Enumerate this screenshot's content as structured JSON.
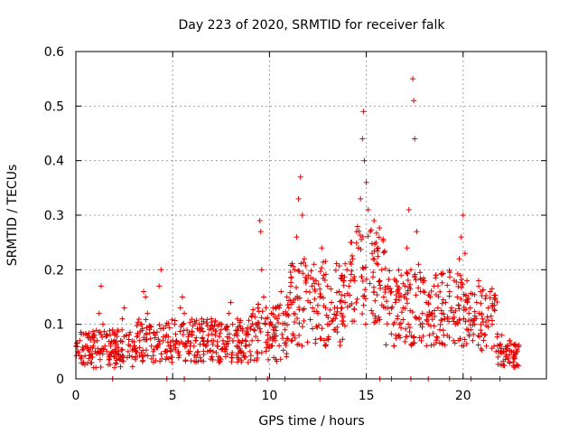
{
  "chart_data": {
    "type": "scatter",
    "title": "Day 223 of 2020, SRMTID for receiver falk",
    "xlabel": "GPS time / hours",
    "ylabel": "SRMTID / TECUs",
    "xlim": [
      0,
      24.3
    ],
    "ylim": [
      0,
      0.6
    ],
    "x_ticks": [
      0,
      5,
      10,
      15,
      20
    ],
    "x_tick_labels": [
      "0",
      "5",
      "10",
      "15",
      "20"
    ],
    "y_ticks": [
      0,
      0.1,
      0.2,
      0.3,
      0.4,
      0.5,
      0.6
    ],
    "y_tick_labels": [
      "0",
      "0.1",
      "0.2",
      "0.3",
      "0.4",
      "0.5",
      "0.6"
    ],
    "grid": true,
    "marker": "plus",
    "color": "#e00000",
    "series": [
      {
        "name": "SRMTID",
        "points": [
          [
            0.0,
            0.06
          ],
          [
            0.1,
            0.05
          ],
          [
            0.2,
            0.07
          ],
          [
            0.3,
            0.04
          ],
          [
            0.4,
            0.03
          ],
          [
            0.5,
            0.06
          ],
          [
            0.6,
            0.08
          ],
          [
            0.7,
            0.05
          ],
          [
            0.8,
            0.04
          ],
          [
            0.9,
            0.06
          ],
          [
            1.0,
            0.05
          ],
          [
            1.1,
            0.07
          ],
          [
            1.2,
            0.12
          ],
          [
            1.3,
            0.17
          ],
          [
            1.4,
            0.1
          ],
          [
            1.5,
            0.06
          ],
          [
            1.6,
            0.05
          ],
          [
            1.7,
            0.04
          ],
          [
            1.8,
            0.06
          ],
          [
            1.9,
            0.05
          ],
          [
            2.0,
            0.07
          ],
          [
            2.1,
            0.06
          ],
          [
            2.2,
            0.05
          ],
          [
            2.3,
            0.04
          ],
          [
            2.4,
            0.11
          ],
          [
            2.5,
            0.13
          ],
          [
            2.6,
            0.08
          ],
          [
            2.7,
            0.05
          ],
          [
            2.8,
            0.06
          ],
          [
            2.9,
            0.04
          ],
          [
            3.0,
            0.06
          ],
          [
            3.1,
            0.05
          ],
          [
            3.2,
            0.08
          ],
          [
            3.3,
            0.07
          ],
          [
            3.4,
            0.1
          ],
          [
            3.5,
            0.16
          ],
          [
            3.6,
            0.15
          ],
          [
            3.7,
            0.12
          ],
          [
            3.8,
            0.09
          ],
          [
            3.9,
            0.06
          ],
          [
            4.0,
            0.05
          ],
          [
            4.1,
            0.08
          ],
          [
            4.2,
            0.06
          ],
          [
            4.3,
            0.17
          ],
          [
            4.4,
            0.2
          ],
          [
            4.5,
            0.07
          ],
          [
            4.6,
            0.05
          ],
          [
            4.7,
            0.04
          ],
          [
            4.8,
            0.06
          ],
          [
            4.9,
            0.05
          ],
          [
            5.0,
            0.07
          ],
          [
            5.1,
            0.1
          ],
          [
            5.2,
            0.07
          ],
          [
            5.3,
            0.05
          ],
          [
            5.4,
            0.13
          ],
          [
            5.5,
            0.15
          ],
          [
            5.6,
            0.12
          ],
          [
            5.7,
            0.06
          ],
          [
            5.8,
            0.05
          ],
          [
            5.9,
            0.06
          ],
          [
            6.0,
            0.08
          ],
          [
            6.1,
            0.06
          ],
          [
            6.2,
            0.07
          ],
          [
            6.3,
            0.05
          ],
          [
            6.4,
            0.09
          ],
          [
            6.5,
            0.11
          ],
          [
            6.6,
            0.07
          ],
          [
            6.7,
            0.06
          ],
          [
            6.8,
            0.05
          ],
          [
            6.9,
            0.09
          ],
          [
            7.0,
            0.11
          ],
          [
            7.1,
            0.07
          ],
          [
            7.2,
            0.08
          ],
          [
            7.3,
            0.06
          ],
          [
            7.4,
            0.1
          ],
          [
            7.5,
            0.09
          ],
          [
            7.6,
            0.07
          ],
          [
            7.7,
            0.05
          ],
          [
            7.8,
            0.09
          ],
          [
            7.9,
            0.12
          ],
          [
            8.0,
            0.14
          ],
          [
            8.1,
            0.1
          ],
          [
            8.2,
            0.08
          ],
          [
            8.3,
            0.06
          ],
          [
            8.4,
            0.07
          ],
          [
            8.5,
            0.05
          ],
          [
            8.6,
            0.07
          ],
          [
            8.7,
            0.04
          ],
          [
            8.8,
            0.06
          ],
          [
            8.9,
            0.03
          ],
          [
            9.0,
            0.05
          ],
          [
            9.1,
            0.07
          ],
          [
            9.2,
            0.09
          ],
          [
            9.3,
            0.1
          ],
          [
            9.4,
            0.13
          ],
          [
            9.5,
            0.29
          ],
          [
            9.55,
            0.27
          ],
          [
            9.6,
            0.2
          ],
          [
            9.7,
            0.15
          ],
          [
            9.8,
            0.11
          ],
          [
            9.9,
            0.08
          ],
          [
            10.0,
            0.1
          ],
          [
            10.1,
            0.12
          ],
          [
            10.2,
            0.09
          ],
          [
            10.3,
            0.07
          ],
          [
            10.4,
            0.11
          ],
          [
            10.5,
            0.13
          ],
          [
            10.6,
            0.16
          ],
          [
            10.7,
            0.12
          ],
          [
            10.8,
            0.09
          ],
          [
            10.9,
            0.15
          ],
          [
            11.0,
            0.13
          ],
          [
            11.1,
            0.17
          ],
          [
            11.2,
            0.14
          ],
          [
            11.3,
            0.2
          ],
          [
            11.4,
            0.26
          ],
          [
            11.5,
            0.33
          ],
          [
            11.6,
            0.37
          ],
          [
            11.7,
            0.3
          ],
          [
            11.8,
            0.22
          ],
          [
            11.9,
            0.16
          ],
          [
            12.0,
            0.19
          ],
          [
            12.1,
            0.14
          ],
          [
            12.2,
            0.17
          ],
          [
            12.3,
            0.21
          ],
          [
            12.4,
            0.18
          ],
          [
            12.5,
            0.12
          ],
          [
            12.6,
            0.15
          ],
          [
            12.7,
            0.24
          ],
          [
            12.8,
            0.19
          ],
          [
            12.9,
            0.13
          ],
          [
            13.0,
            0.17
          ],
          [
            13.1,
            0.1
          ],
          [
            13.2,
            0.14
          ],
          [
            13.3,
            0.11
          ],
          [
            13.4,
            0.09
          ],
          [
            13.5,
            0.13
          ],
          [
            13.6,
            0.16
          ],
          [
            13.7,
            0.12
          ],
          [
            13.8,
            0.18
          ],
          [
            13.9,
            0.14
          ],
          [
            14.0,
            0.2
          ],
          [
            14.1,
            0.17
          ],
          [
            14.2,
            0.25
          ],
          [
            14.3,
            0.22
          ],
          [
            14.4,
            0.18
          ],
          [
            14.5,
            0.27
          ],
          [
            14.6,
            0.24
          ],
          [
            14.7,
            0.33
          ],
          [
            14.8,
            0.44
          ],
          [
            14.85,
            0.49
          ],
          [
            14.9,
            0.4
          ],
          [
            15.0,
            0.36
          ],
          [
            15.1,
            0.31
          ],
          [
            15.2,
            0.27
          ],
          [
            15.3,
            0.23
          ],
          [
            15.4,
            0.29
          ],
          [
            15.5,
            0.25
          ],
          [
            15.6,
            0.21
          ],
          [
            15.7,
            0.18
          ],
          [
            15.8,
            0.2
          ],
          [
            15.9,
            0.15
          ],
          [
            16.0,
            0.13
          ],
          [
            16.1,
            0.17
          ],
          [
            16.2,
            0.12
          ],
          [
            16.3,
            0.16
          ],
          [
            16.4,
            0.1
          ],
          [
            16.5,
            0.14
          ],
          [
            16.6,
            0.11
          ],
          [
            16.7,
            0.15
          ],
          [
            16.8,
            0.19
          ],
          [
            16.9,
            0.13
          ],
          [
            17.0,
            0.17
          ],
          [
            17.1,
            0.24
          ],
          [
            17.2,
            0.31
          ],
          [
            17.3,
            0.2
          ],
          [
            17.4,
            0.55
          ],
          [
            17.45,
            0.51
          ],
          [
            17.5,
            0.44
          ],
          [
            17.6,
            0.27
          ],
          [
            17.7,
            0.21
          ],
          [
            17.8,
            0.16
          ],
          [
            17.9,
            0.12
          ],
          [
            18.0,
            0.18
          ],
          [
            18.1,
            0.14
          ],
          [
            18.2,
            0.1
          ],
          [
            18.3,
            0.15
          ],
          [
            18.4,
            0.12
          ],
          [
            18.5,
            0.17
          ],
          [
            18.6,
            0.19
          ],
          [
            18.7,
            0.13
          ],
          [
            18.8,
            0.09
          ],
          [
            18.9,
            0.12
          ],
          [
            19.0,
            0.08
          ],
          [
            19.1,
            0.14
          ],
          [
            19.2,
            0.11
          ],
          [
            19.3,
            0.16
          ],
          [
            19.4,
            0.13
          ],
          [
            19.5,
            0.07
          ],
          [
            19.6,
            0.1
          ],
          [
            19.7,
            0.15
          ],
          [
            19.8,
            0.22
          ],
          [
            19.9,
            0.26
          ],
          [
            20.0,
            0.3
          ],
          [
            20.1,
            0.23
          ],
          [
            20.2,
            0.18
          ],
          [
            20.3,
            0.12
          ],
          [
            20.4,
            0.09
          ],
          [
            20.5,
            0.07
          ],
          [
            20.6,
            0.1
          ],
          [
            20.7,
            0.14
          ],
          [
            20.8,
            0.18
          ],
          [
            20.9,
            0.16
          ],
          [
            21.0,
            0.11
          ],
          [
            21.1,
            0.08
          ],
          [
            21.2,
            0.06
          ],
          [
            21.3,
            0.13
          ],
          [
            21.4,
            0.16
          ],
          [
            21.5,
            0.1
          ],
          [
            21.6,
            0.06
          ],
          [
            21.7,
            0.05
          ],
          [
            21.8,
            0.04
          ],
          [
            21.9,
            0.06
          ],
          [
            22.0,
            0.08
          ],
          [
            22.1,
            0.05
          ],
          [
            22.2,
            0.04
          ],
          [
            22.3,
            0.06
          ],
          [
            22.4,
            0.07
          ],
          [
            22.5,
            0.05
          ],
          [
            22.6,
            0.04
          ],
          [
            22.7,
            0.06
          ],
          [
            22.8,
            0.05
          ]
        ],
        "baseline_points": [
          1.9,
          4.7,
          5.6,
          6.9,
          9.3,
          9.9,
          10.8,
          12.6,
          15.7,
          16.3,
          17.3,
          18.2,
          19.3,
          20.4,
          21.9
        ]
      }
    ],
    "dense_bands": [
      {
        "x_from": 0.0,
        "x_to": 3.0,
        "y_low": 0.02,
        "y_high": 0.09
      },
      {
        "x_from": 3.0,
        "x_to": 9.0,
        "y_low": 0.03,
        "y_high": 0.11
      },
      {
        "x_from": 9.0,
        "x_to": 11.0,
        "y_low": 0.03,
        "y_high": 0.14
      },
      {
        "x_from": 11.0,
        "x_to": 14.0,
        "y_low": 0.06,
        "y_high": 0.22
      },
      {
        "x_from": 14.0,
        "x_to": 16.0,
        "y_low": 0.1,
        "y_high": 0.28
      },
      {
        "x_from": 16.0,
        "x_to": 20.0,
        "y_low": 0.06,
        "y_high": 0.2
      },
      {
        "x_from": 20.0,
        "x_to": 21.8,
        "y_low": 0.05,
        "y_high": 0.17
      },
      {
        "x_from": 21.8,
        "x_to": 22.9,
        "y_low": 0.02,
        "y_high": 0.07
      }
    ]
  }
}
